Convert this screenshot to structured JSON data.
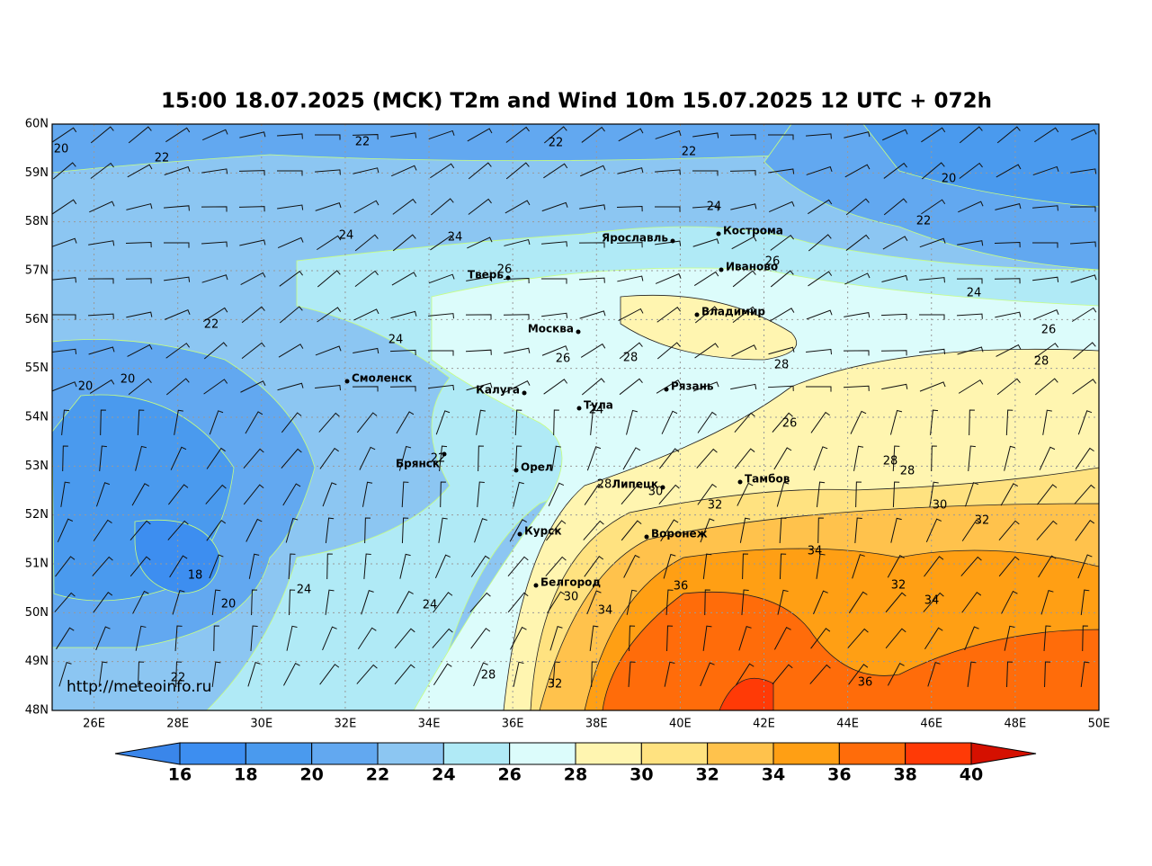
{
  "title": "15:00 18.07.2025 (MCK) T2m and Wind 10m 15.07.2025 12 UTC + 072h",
  "url": "http://meteoinfo.ru",
  "lat_labels": [
    "60N",
    "59N",
    "58N",
    "57N",
    "56N",
    "55N",
    "54N",
    "53N",
    "52N",
    "51N",
    "50N",
    "49N",
    "48N"
  ],
  "lon_labels": [
    "26E",
    "28E",
    "30E",
    "32E",
    "34E",
    "36E",
    "38E",
    "40E",
    "42E",
    "44E",
    "46E",
    "48E",
    "50E"
  ],
  "cities": [
    "Ярославль",
    "Кострома",
    "Иваново",
    "Тверь",
    "Владимир",
    "Москва",
    "Смоленск",
    "Рязань",
    "Калуга",
    "Тула",
    "Брянск",
    "Орел",
    "Липецк",
    "Тамбов",
    "Курск",
    "Воронеж",
    "Белгород"
  ],
  "contour_labels": [
    20,
    22,
    22,
    22,
    22,
    20,
    24,
    22,
    24,
    24,
    26,
    26,
    24,
    22,
    24,
    26,
    26,
    28,
    28,
    28,
    20,
    20,
    24,
    26,
    22,
    28,
    28,
    28,
    30,
    32,
    30,
    32,
    34,
    18,
    36,
    32,
    24,
    34,
    30,
    20,
    24,
    34,
    28,
    22,
    32,
    36
  ],
  "colorbar": {
    "levels": [
      16,
      18,
      20,
      22,
      24,
      26,
      28,
      30,
      32,
      34,
      36,
      38,
      40
    ],
    "colors": [
      "#3a86ea",
      "#3d8ef0",
      "#4a9aee",
      "#62a8f0",
      "#8cc6f2",
      "#b0eaf6",
      "#dcfcfb",
      "#fff5b0",
      "#ffe280",
      "#ffc24c",
      "#ff9f14",
      "#ff6c0a",
      "#ff3a06",
      "#d51000"
    ]
  }
}
